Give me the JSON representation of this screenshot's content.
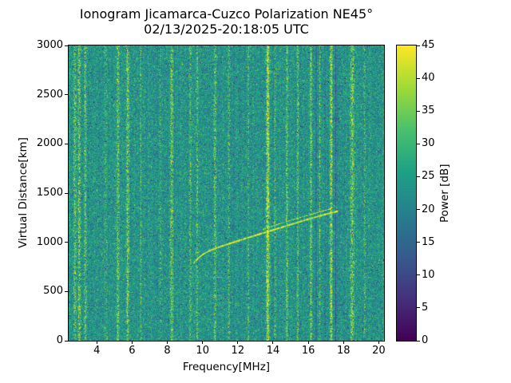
{
  "seed": 20250213,
  "chart_data": {
    "type": "heatmap",
    "title": "Ionogram Jicamarca-Cuzco Polarization NE45°",
    "subtitle": "02/13/2025-20:18:05 UTC",
    "xlabel": "Frequency[MHz]",
    "ylabel": "Virtual Distance[km]",
    "colorbar_label": "Power [dB]",
    "colormap": "viridis",
    "xlim": [
      2.4,
      20.3
    ],
    "ylim": [
      0,
      3000
    ],
    "vmin": 0,
    "vmax": 45,
    "xticks": [
      4,
      6,
      8,
      10,
      12,
      14,
      16,
      18,
      20
    ],
    "yticks": [
      0,
      500,
      1000,
      1500,
      2000,
      2500,
      3000
    ],
    "colorbar_ticks": [
      0,
      5,
      10,
      15,
      20,
      25,
      30,
      35,
      40,
      45
    ],
    "background_noise_db": {
      "mean": 23,
      "std": 4.6
    },
    "rfi_stripes": [
      {
        "freq": 2.75,
        "boost": 8,
        "std_boost": 4,
        "width": 0.06
      },
      {
        "freq": 3.0,
        "boost": 10,
        "std_boost": 5,
        "width": 0.05
      },
      {
        "freq": 3.35,
        "boost": 7,
        "std_boost": 4,
        "width": 0.05
      },
      {
        "freq": 4.5,
        "boost": 4,
        "std_boost": 2,
        "width": 0.05
      },
      {
        "freq": 5.2,
        "boost": 9,
        "std_boost": 5,
        "width": 0.05
      },
      {
        "freq": 5.75,
        "boost": 9,
        "std_boost": 5,
        "width": 0.06
      },
      {
        "freq": 6.5,
        "boost": 4,
        "std_boost": 2,
        "width": 0.04
      },
      {
        "freq": 7.6,
        "boost": 3,
        "std_boost": 2,
        "width": 0.05
      },
      {
        "freq": 8.25,
        "boost": 8,
        "std_boost": 4,
        "width": 0.06
      },
      {
        "freq": 9.3,
        "boost": 6,
        "std_boost": 3,
        "width": 0.04
      },
      {
        "freq": 9.7,
        "boost": 6,
        "std_boost": 3,
        "width": 0.04
      },
      {
        "freq": 10.7,
        "boost": 7,
        "std_boost": 4,
        "width": 0.05
      },
      {
        "freq": 11.5,
        "boost": 4,
        "std_boost": 3,
        "width": 0.04
      },
      {
        "freq": 12.6,
        "boost": 5,
        "std_boost": 3,
        "width": 0.03
      },
      {
        "freq": 13.7,
        "boost": 15,
        "std_boost": 6,
        "width": 0.06
      },
      {
        "freq": 14.1,
        "boost": 5,
        "std_boost": 3,
        "width": 0.03
      },
      {
        "freq": 14.8,
        "boost": 7,
        "std_boost": 4,
        "width": 0.04
      },
      {
        "freq": 15.4,
        "boost": 6,
        "std_boost": 3,
        "width": 0.04
      },
      {
        "freq": 16.15,
        "boost": 10,
        "std_boost": 5,
        "width": 0.04
      },
      {
        "freq": 16.65,
        "boost": 7,
        "std_boost": 4,
        "width": 0.03
      },
      {
        "freq": 17.3,
        "boost": 14,
        "std_boost": 6,
        "width": 0.05
      },
      {
        "freq": 18.5,
        "boost": 9,
        "std_boost": 5,
        "width": 0.08
      },
      {
        "freq": 19.2,
        "boost": 4,
        "std_boost": 3,
        "width": 0.04
      }
    ],
    "dark_stripes": [
      {
        "freq": 16.45,
        "drop": 12,
        "width": 0.015
      },
      {
        "freq": 16.95,
        "drop": 10,
        "width": 0.012
      },
      {
        "freq": 17.55,
        "drop": 13,
        "width": 0.015
      }
    ],
    "echo_traces": [
      {
        "name": "main-oblique-trace",
        "power_db": 45,
        "half_width_km": 16,
        "points": [
          [
            9.45,
            780
          ],
          [
            9.7,
            830
          ],
          [
            10.0,
            875
          ],
          [
            10.4,
            915
          ],
          [
            10.9,
            950
          ],
          [
            11.5,
            985
          ],
          [
            12.2,
            1025
          ],
          [
            13.0,
            1070
          ],
          [
            14.0,
            1125
          ],
          [
            15.0,
            1180
          ],
          [
            16.0,
            1235
          ],
          [
            17.0,
            1285
          ],
          [
            17.65,
            1315
          ]
        ]
      },
      {
        "name": "upper-branch",
        "power_db": 38,
        "half_width_km": 10,
        "points": [
          [
            13.4,
            1130
          ],
          [
            14.4,
            1190
          ],
          [
            15.4,
            1245
          ],
          [
            16.4,
            1295
          ],
          [
            17.3,
            1342
          ]
        ]
      },
      {
        "name": "low-altitude-dash",
        "power_db": 34,
        "half_width_km": 9,
        "points": [
          [
            10.45,
            640
          ],
          [
            11.15,
            648
          ]
        ]
      }
    ],
    "viridis_stops": [
      "#440154",
      "#46327e",
      "#365c8d",
      "#277f8e",
      "#1fa187",
      "#4ac16d",
      "#a0da39",
      "#fde725"
    ]
  }
}
